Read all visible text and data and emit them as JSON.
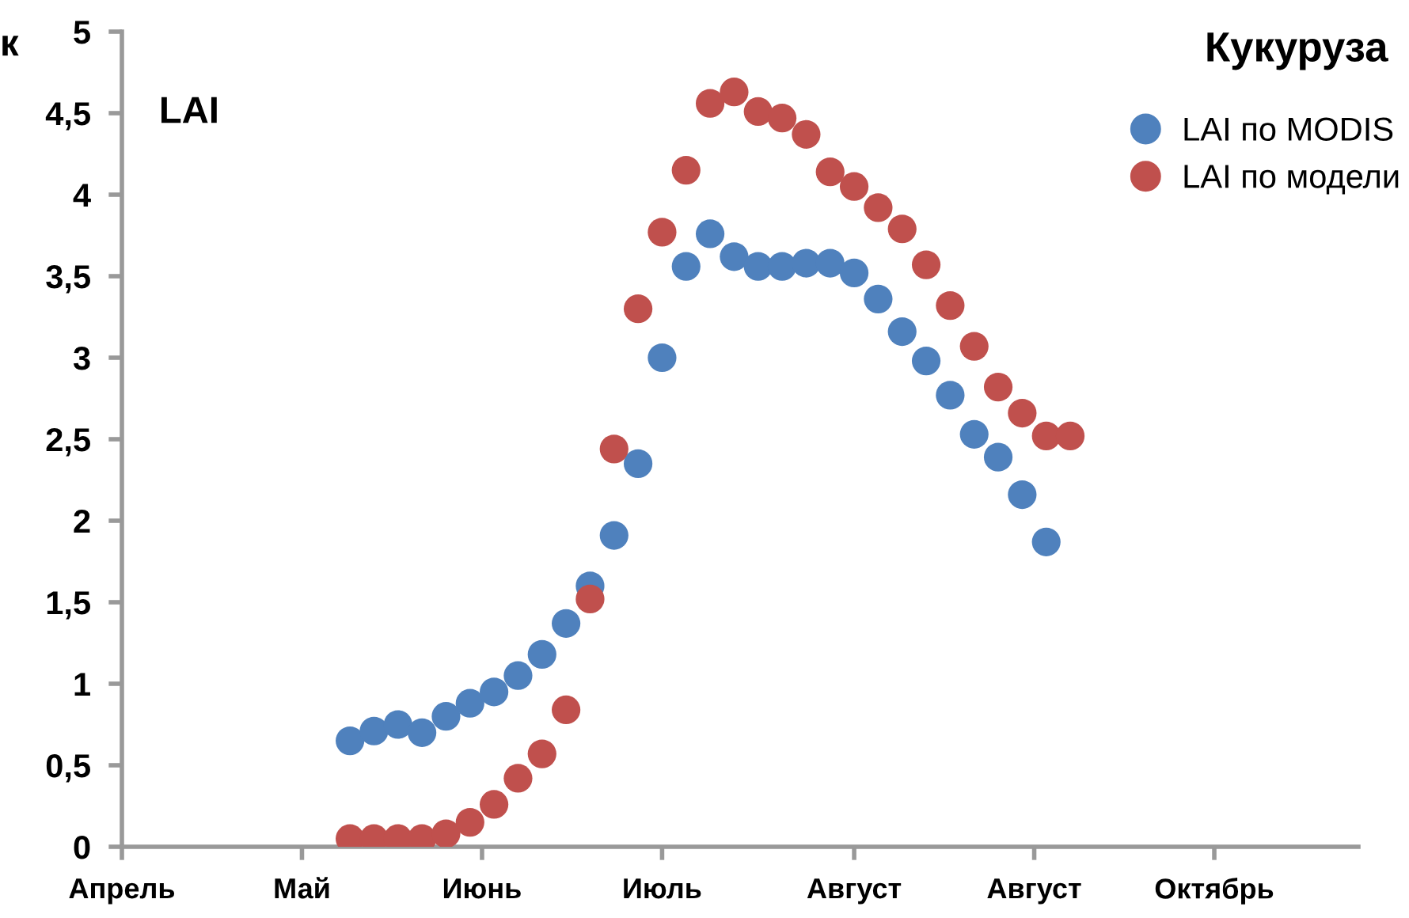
{
  "chart_data": {
    "type": "scatter",
    "title": "Кукуруза",
    "ylabel": "LAI",
    "annotations": [
      "к"
    ],
    "categories": [
      "Апрель",
      null,
      null,
      null,
      null,
      null,
      null,
      null,
      null,
      null,
      null,
      null,
      null,
      null,
      null,
      "Май",
      null,
      null,
      null,
      null,
      null,
      null,
      null,
      null,
      null,
      null,
      null,
      null,
      null,
      null,
      "Июнь",
      null,
      null,
      null,
      null,
      null,
      null,
      null,
      null,
      null,
      null,
      null,
      null,
      null,
      null,
      "Июль",
      null,
      null,
      null,
      null,
      null,
      null,
      null,
      null,
      null,
      null,
      null,
      null,
      null,
      null,
      null,
      "Август",
      null,
      null,
      null,
      null,
      null,
      null,
      null,
      null,
      null,
      null,
      null,
      null,
      null,
      null,
      "Август",
      null,
      null,
      null,
      null,
      null,
      null,
      null,
      null,
      null,
      null,
      null,
      null,
      null,
      null,
      "Октябрь",
      null,
      null,
      null,
      null,
      null,
      null,
      null,
      null,
      null,
      null,
      null,
      null
    ],
    "ylim": [
      0,
      5
    ],
    "yticks": [
      {
        "value": 0,
        "label": "0"
      },
      {
        "value": 0.5,
        "label": "0,5"
      },
      {
        "value": 1,
        "label": "1"
      },
      {
        "value": 1.5,
        "label": "1,5"
      },
      {
        "value": 2,
        "label": "2"
      },
      {
        "value": 2.5,
        "label": "2,5"
      },
      {
        "value": 3,
        "label": "3"
      },
      {
        "value": 3.5,
        "label": "3,5"
      },
      {
        "value": 4,
        "label": "4"
      },
      {
        "value": 4.5,
        "label": "4,5"
      },
      {
        "value": 5,
        "label": "5"
      }
    ],
    "grid": false,
    "legend": "top right",
    "marker": "circle",
    "series": [
      {
        "name": "LAI по MODIS",
        "color": "#4f81bd",
        "values": [
          null,
          null,
          null,
          null,
          null,
          null,
          null,
          null,
          null,
          null,
          null,
          null,
          null,
          null,
          null,
          null,
          null,
          null,
          null,
          0.65,
          null,
          0.71,
          null,
          0.75,
          null,
          0.7,
          null,
          0.8,
          null,
          0.88,
          null,
          0.95,
          null,
          1.05,
          null,
          1.18,
          null,
          1.37,
          null,
          1.6,
          null,
          1.91,
          null,
          2.35,
          null,
          3.0,
          null,
          3.56,
          null,
          3.76,
          null,
          3.62,
          null,
          3.56,
          null,
          3.56,
          null,
          3.58,
          null,
          3.58,
          null,
          3.52,
          null,
          3.36,
          null,
          3.16,
          null,
          2.98,
          null,
          2.77,
          null,
          2.53,
          null,
          2.39,
          null,
          2.16,
          null,
          1.87,
          null,
          null,
          null,
          null,
          null,
          null,
          null,
          null,
          null,
          null,
          null,
          null,
          null,
          null,
          null,
          null,
          null,
          null,
          null,
          null,
          null,
          null,
          null,
          null,
          null,
          null
        ]
      },
      {
        "name": "LAI по модели",
        "color": "#c0504d",
        "values": [
          null,
          null,
          null,
          null,
          null,
          null,
          null,
          null,
          null,
          null,
          null,
          null,
          null,
          null,
          null,
          null,
          null,
          null,
          null,
          0.05,
          null,
          0.05,
          null,
          0.05,
          null,
          0.05,
          null,
          0.08,
          null,
          0.15,
          null,
          0.26,
          null,
          0.42,
          null,
          0.57,
          null,
          0.84,
          null,
          1.52,
          null,
          2.44,
          null,
          3.3,
          null,
          3.77,
          null,
          4.15,
          null,
          4.56,
          null,
          4.63,
          null,
          4.51,
          null,
          4.47,
          null,
          4.37,
          null,
          4.14,
          null,
          4.05,
          null,
          3.92,
          null,
          3.79,
          null,
          3.57,
          null,
          3.32,
          null,
          3.07,
          null,
          2.82,
          null,
          2.66,
          null,
          2.52,
          null,
          2.52,
          null,
          null,
          null,
          null,
          null,
          null,
          null,
          null,
          null,
          null,
          null,
          null,
          null,
          null,
          null,
          null,
          null,
          null,
          null,
          null,
          null,
          null,
          null,
          null
        ]
      }
    ]
  }
}
